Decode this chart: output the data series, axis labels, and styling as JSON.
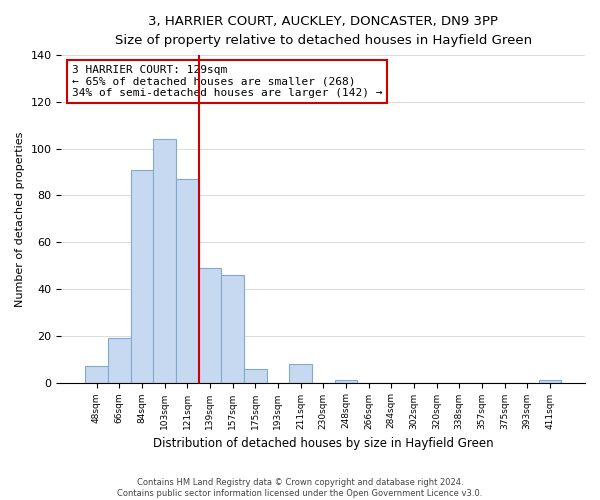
{
  "title": "3, HARRIER COURT, AUCKLEY, DONCASTER, DN9 3PP",
  "subtitle": "Size of property relative to detached houses in Hayfield Green",
  "xlabel": "Distribution of detached houses by size in Hayfield Green",
  "ylabel": "Number of detached properties",
  "bin_labels": [
    "48sqm",
    "66sqm",
    "84sqm",
    "103sqm",
    "121sqm",
    "139sqm",
    "157sqm",
    "175sqm",
    "193sqm",
    "211sqm",
    "230sqm",
    "248sqm",
    "266sqm",
    "284sqm",
    "302sqm",
    "320sqm",
    "338sqm",
    "357sqm",
    "375sqm",
    "393sqm",
    "411sqm"
  ],
  "bar_heights": [
    7,
    19,
    91,
    104,
    87,
    49,
    46,
    6,
    0,
    8,
    0,
    1,
    0,
    0,
    0,
    0,
    0,
    0,
    0,
    0,
    1
  ],
  "bar_color": "#c6d9f0",
  "bar_edge_color": "#7eaacd",
  "vline_x_index": 4,
  "vline_color": "#cc0000",
  "annotation_text": "3 HARRIER COURT: 129sqm\n← 65% of detached houses are smaller (268)\n34% of semi-detached houses are larger (142) →",
  "annotation_box_color": "#ffffff",
  "annotation_box_edge": "#cc0000",
  "ylim": [
    0,
    140
  ],
  "yticks": [
    0,
    20,
    40,
    60,
    80,
    100,
    120,
    140
  ],
  "footer_line1": "Contains HM Land Registry data © Crown copyright and database right 2024.",
  "footer_line2": "Contains public sector information licensed under the Open Government Licence v3.0.",
  "bg_color": "#ffffff"
}
